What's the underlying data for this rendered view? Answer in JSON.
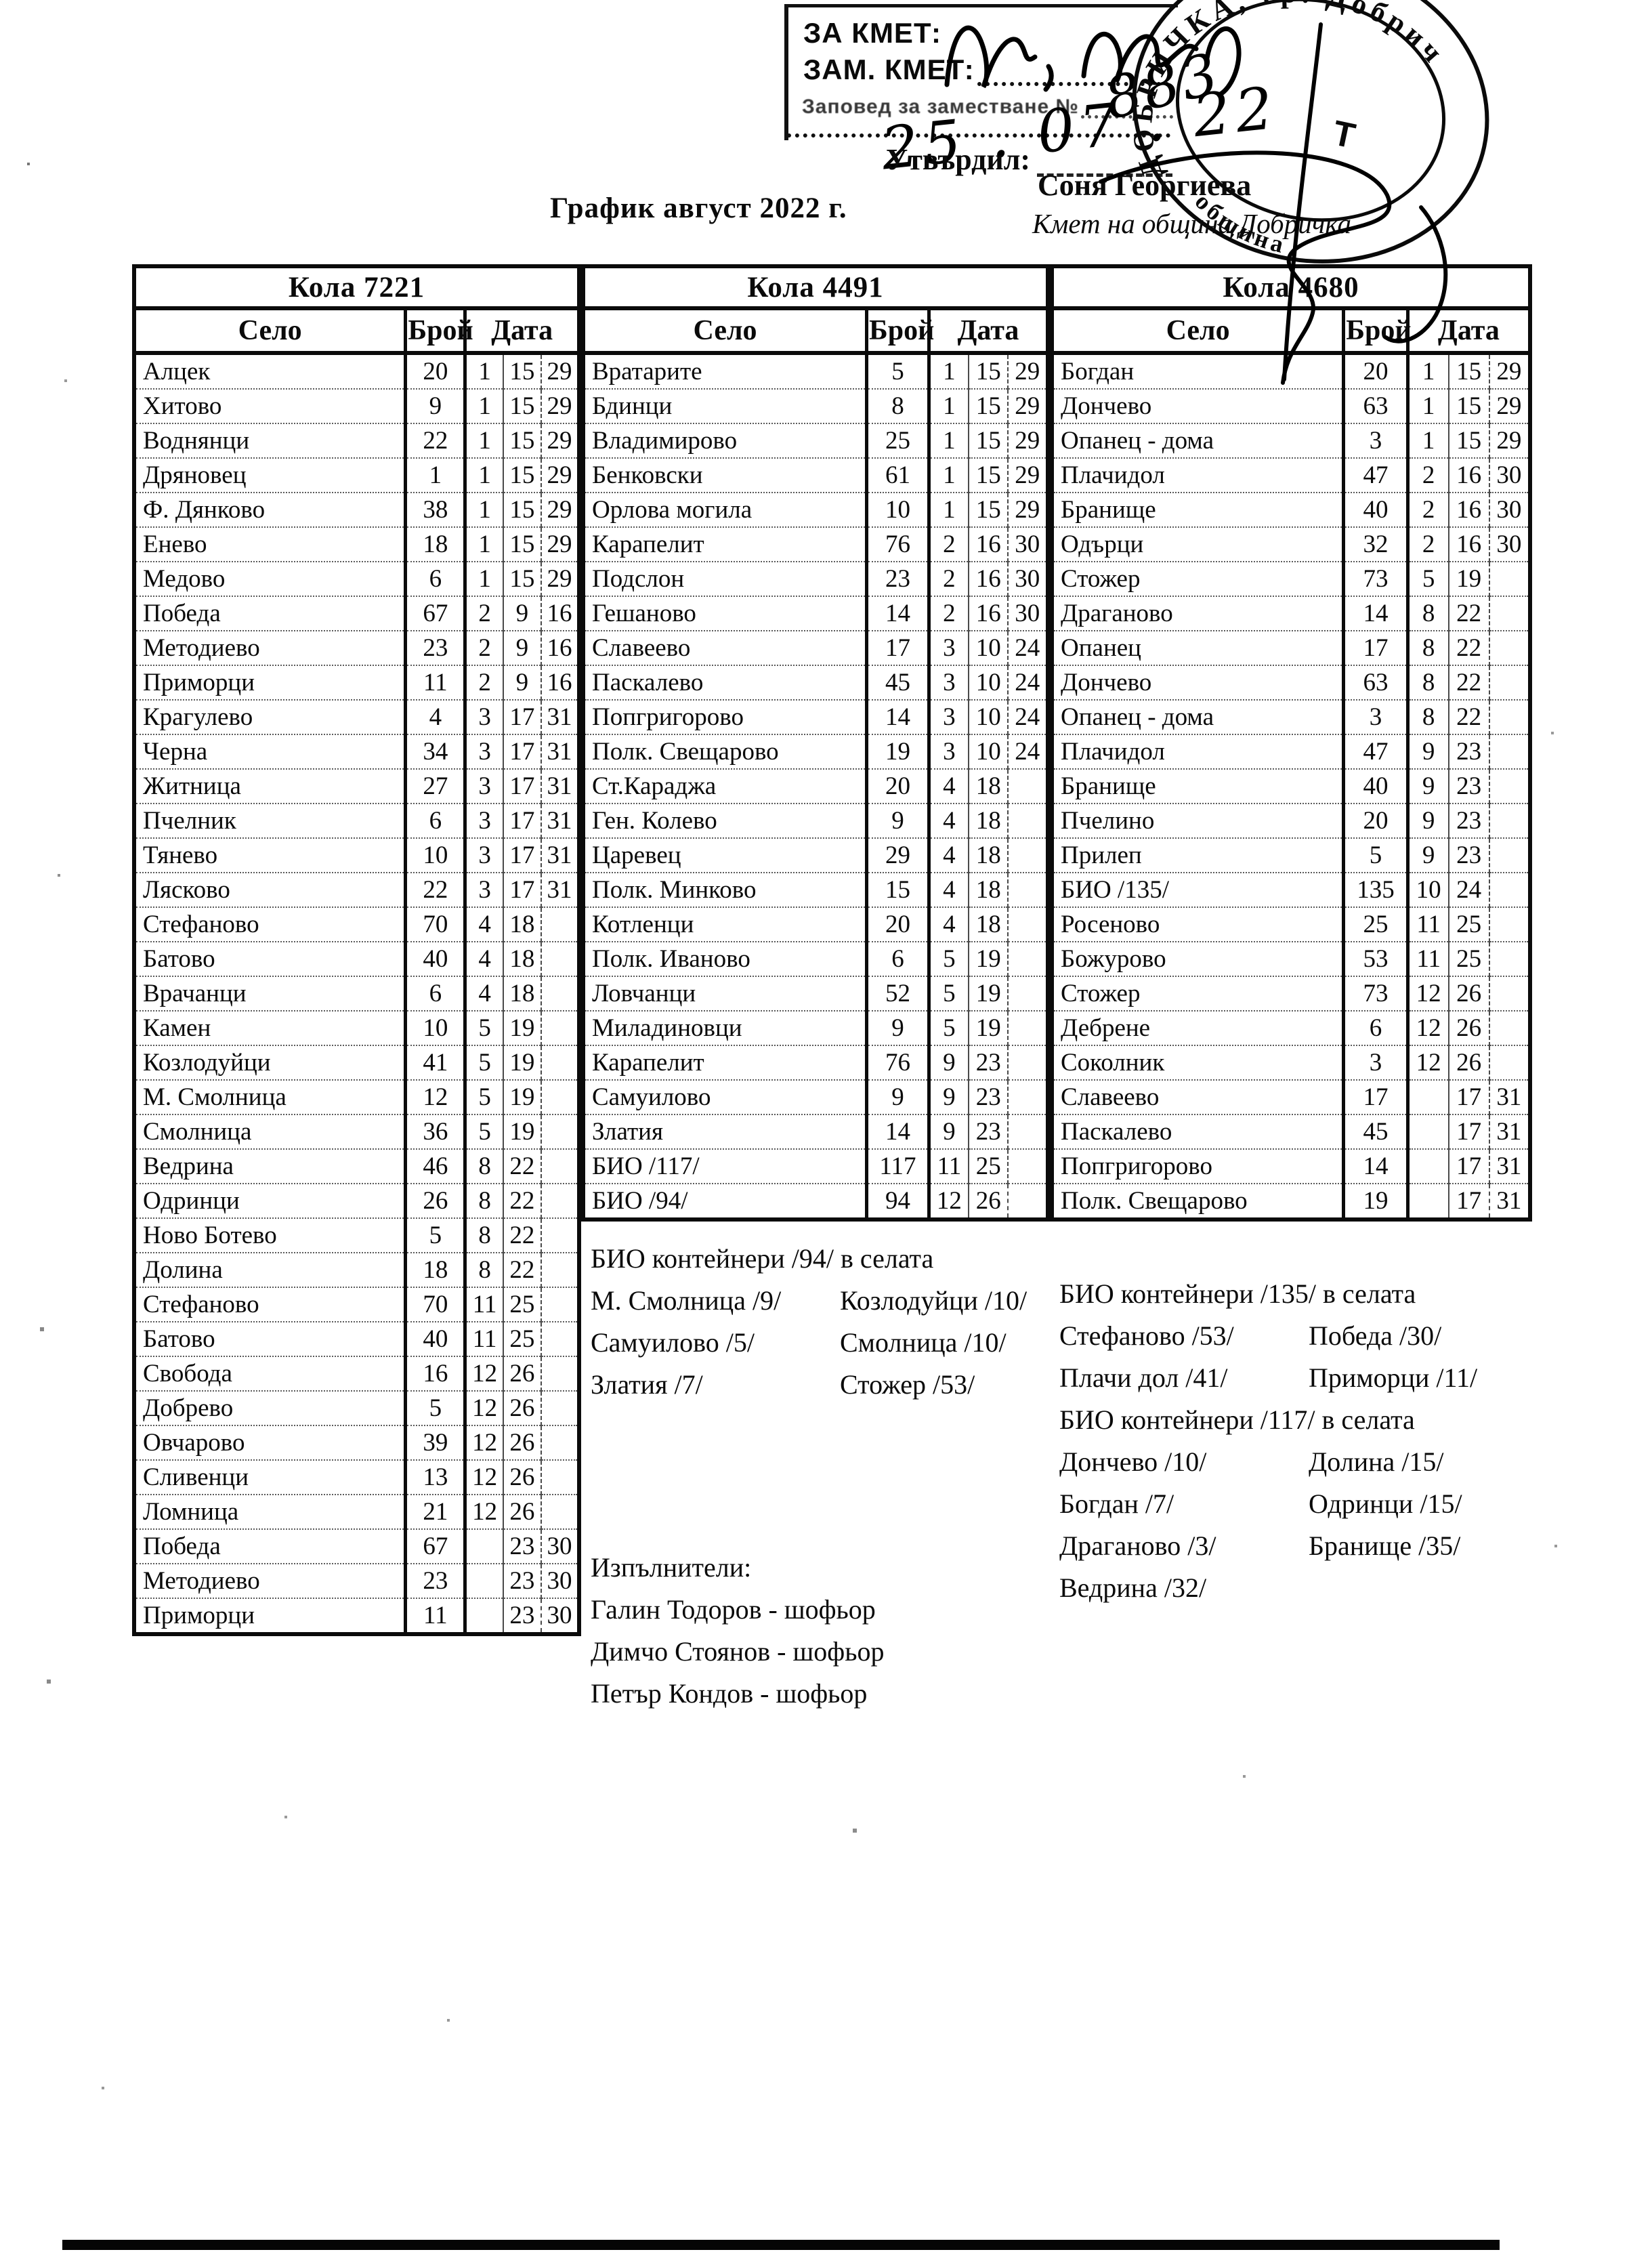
{
  "document": {
    "title": "График август 2022 г.",
    "stamp_box": {
      "for_mayor": "ЗА КМЕТ:",
      "deputy_mayor": "ЗАМ. КМЕТ:",
      "order_label": "Заповед за заместване №",
      "order_number": "883",
      "order_date": "25 . 07 . 22"
    },
    "approval": {
      "label": "Утвърдил:",
      "name": "Соня Георгиева",
      "title": "Кмет  на община Добричка"
    },
    "seal": {
      "ring_text": "ДОБРИЧКА, гр. Добрич",
      "bottom_text": "община",
      "monogram": "Т"
    }
  },
  "tables": [
    {
      "car": "Кола 7221",
      "col_village": "Село",
      "col_count": "Брой",
      "col_date": "Дата",
      "rows": [
        [
          "Алцек",
          "20",
          "1",
          "15",
          "29"
        ],
        [
          "Хитово",
          "9",
          "1",
          "15",
          "29"
        ],
        [
          "Воднянци",
          "22",
          "1",
          "15",
          "29"
        ],
        [
          "Дряновец",
          "1",
          "1",
          "15",
          "29"
        ],
        [
          "Ф. Дянково",
          "38",
          "1",
          "15",
          "29"
        ],
        [
          "Енево",
          "18",
          "1",
          "15",
          "29"
        ],
        [
          "Медово",
          "6",
          "1",
          "15",
          "29"
        ],
        [
          "Победа",
          "67",
          "2",
          "9",
          "16"
        ],
        [
          "Методиево",
          "23",
          "2",
          "9",
          "16"
        ],
        [
          "Приморци",
          "11",
          "2",
          "9",
          "16"
        ],
        [
          "Крагулево",
          "4",
          "3",
          "17",
          "31"
        ],
        [
          "Черна",
          "34",
          "3",
          "17",
          "31"
        ],
        [
          "Житница",
          "27",
          "3",
          "17",
          "31"
        ],
        [
          "Пчелник",
          "6",
          "3",
          "17",
          "31"
        ],
        [
          "Тянево",
          "10",
          "3",
          "17",
          "31"
        ],
        [
          "Лясково",
          "22",
          "3",
          "17",
          "31"
        ],
        [
          "Стефаново",
          "70",
          "4",
          "18",
          ""
        ],
        [
          "Батово",
          "40",
          "4",
          "18",
          ""
        ],
        [
          "Врачанци",
          "6",
          "4",
          "18",
          ""
        ],
        [
          "Камен",
          "10",
          "5",
          "19",
          ""
        ],
        [
          "Козлодуйци",
          "41",
          "5",
          "19",
          ""
        ],
        [
          "М. Смолница",
          "12",
          "5",
          "19",
          ""
        ],
        [
          "Смолница",
          "36",
          "5",
          "19",
          ""
        ],
        [
          "Ведрина",
          "46",
          "8",
          "22",
          ""
        ],
        [
          "Одринци",
          "26",
          "8",
          "22",
          ""
        ],
        [
          "Ново Ботево",
          "5",
          "8",
          "22",
          ""
        ],
        [
          "Долина",
          "18",
          "8",
          "22",
          ""
        ],
        [
          "Стефаново",
          "70",
          "11",
          "25",
          ""
        ],
        [
          "Батово",
          "40",
          "11",
          "25",
          ""
        ],
        [
          "Свобода",
          "16",
          "12",
          "26",
          ""
        ],
        [
          "Добрево",
          "5",
          "12",
          "26",
          ""
        ],
        [
          "Овчарово",
          "39",
          "12",
          "26",
          ""
        ],
        [
          "Сливенци",
          "13",
          "12",
          "26",
          ""
        ],
        [
          "Ломница",
          "21",
          "12",
          "26",
          ""
        ],
        [
          "Победа",
          "67",
          "",
          "23",
          "30"
        ],
        [
          "Методиево",
          "23",
          "",
          "23",
          "30"
        ],
        [
          "Приморци",
          "11",
          "",
          "23",
          "30"
        ]
      ]
    },
    {
      "car": "Кола 4491",
      "col_village": "Село",
      "col_count": "Брой",
      "col_date": "Дата",
      "rows": [
        [
          "Вратарите",
          "5",
          "1",
          "15",
          "29"
        ],
        [
          "Бдинци",
          "8",
          "1",
          "15",
          "29"
        ],
        [
          "Владимирово",
          "25",
          "1",
          "15",
          "29"
        ],
        [
          "Бенковски",
          "61",
          "1",
          "15",
          "29"
        ],
        [
          "Орлова могила",
          "10",
          "1",
          "15",
          "29"
        ],
        [
          "Карапелит",
          "76",
          "2",
          "16",
          "30"
        ],
        [
          "Подслон",
          "23",
          "2",
          "16",
          "30"
        ],
        [
          "Гешаново",
          "14",
          "2",
          "16",
          "30"
        ],
        [
          "Славеево",
          "17",
          "3",
          "10",
          "24"
        ],
        [
          "Паскалево",
          "45",
          "3",
          "10",
          "24"
        ],
        [
          "Попгригорово",
          "14",
          "3",
          "10",
          "24"
        ],
        [
          "Полк. Свещарово",
          "19",
          "3",
          "10",
          "24"
        ],
        [
          "Ст.Караджа",
          "20",
          "4",
          "18",
          ""
        ],
        [
          "Ген. Колево",
          "9",
          "4",
          "18",
          ""
        ],
        [
          "Царевец",
          "29",
          "4",
          "18",
          ""
        ],
        [
          "Полк. Минково",
          "15",
          "4",
          "18",
          ""
        ],
        [
          "Котленци",
          "20",
          "4",
          "18",
          ""
        ],
        [
          "Полк. Иваново",
          "6",
          "5",
          "19",
          ""
        ],
        [
          "Ловчанци",
          "52",
          "5",
          "19",
          ""
        ],
        [
          "Миладиновци",
          "9",
          "5",
          "19",
          ""
        ],
        [
          "Карапелит",
          "76",
          "9",
          "23",
          ""
        ],
        [
          "Самуилово",
          "9",
          "9",
          "23",
          ""
        ],
        [
          "Златия",
          "14",
          "9",
          "23",
          ""
        ],
        [
          "БИО /117/",
          "117",
          "11",
          "25",
          ""
        ],
        [
          "БИО /94/",
          "94",
          "12",
          "26",
          ""
        ]
      ]
    },
    {
      "car": "Кола 4680",
      "col_village": "Село",
      "col_count": "Брой",
      "col_date": "Дата",
      "rows": [
        [
          "Богдан",
          "20",
          "1",
          "15",
          "29"
        ],
        [
          "Дончево",
          "63",
          "1",
          "15",
          "29"
        ],
        [
          "Опанец - дома",
          "3",
          "1",
          "15",
          "29"
        ],
        [
          "Плачидол",
          "47",
          "2",
          "16",
          "30"
        ],
        [
          "Бранище",
          "40",
          "2",
          "16",
          "30"
        ],
        [
          "Одърци",
          "32",
          "2",
          "16",
          "30"
        ],
        [
          "Стожер",
          "73",
          "5",
          "19",
          ""
        ],
        [
          "Драганово",
          "14",
          "8",
          "22",
          ""
        ],
        [
          "Опанец",
          "17",
          "8",
          "22",
          ""
        ],
        [
          "Дончево",
          "63",
          "8",
          "22",
          ""
        ],
        [
          "Опанец - дома",
          "3",
          "8",
          "22",
          ""
        ],
        [
          "Плачидол",
          "47",
          "9",
          "23",
          ""
        ],
        [
          "Бранище",
          "40",
          "9",
          "23",
          ""
        ],
        [
          "Пчелино",
          "20",
          "9",
          "23",
          ""
        ],
        [
          "Прилеп",
          "5",
          "9",
          "23",
          ""
        ],
        [
          "БИО /135/",
          "135",
          "10",
          "24",
          ""
        ],
        [
          "Росеново",
          "25",
          "11",
          "25",
          ""
        ],
        [
          "Божурово",
          "53",
          "11",
          "25",
          ""
        ],
        [
          "Стожер",
          "73",
          "12",
          "26",
          ""
        ],
        [
          "Дебрене",
          "6",
          "12",
          "26",
          ""
        ],
        [
          "Соколник",
          "3",
          "12",
          "26",
          ""
        ],
        [
          "Славеево",
          "17",
          "",
          "17",
          "31"
        ],
        [
          "Паскалево",
          "45",
          "",
          "17",
          "31"
        ],
        [
          "Попгригорово",
          "14",
          "",
          "17",
          "31"
        ],
        [
          "Полк. Свещарово",
          "19",
          "",
          "17",
          "31"
        ]
      ]
    }
  ],
  "notes_4491": {
    "title": "БИО контейнери /94/ в селата",
    "lines": [
      [
        "М. Смолница /9/",
        "Козлодуйци /10/"
      ],
      [
        "Самуилово /5/",
        "Смолница /10/"
      ],
      [
        "Златия /7/",
        "Стожер /53/"
      ]
    ]
  },
  "notes_4680": {
    "title1": "БИО контейнери /135/ в селата",
    "lines1": [
      [
        "Стефаново /53/",
        "Победа /30/"
      ],
      [
        "Плачи дол /41/",
        "Приморци /11/"
      ]
    ],
    "title2": "БИО контейнери /117/ в селата",
    "lines2": [
      [
        "Дончево /10/",
        "Долина /15/"
      ],
      [
        "Богдан /7/",
        "Одринци /15/"
      ],
      [
        "Драганово /3/",
        "Бранище /35/"
      ],
      [
        "Ведрина /32/",
        ""
      ]
    ]
  },
  "executors": {
    "title": "Изпълнители:",
    "lines": [
      "Галин Тодоров - шофьор",
      "Димчо Стоянов - шофьор",
      "Петър Кондов - шофьор"
    ]
  }
}
